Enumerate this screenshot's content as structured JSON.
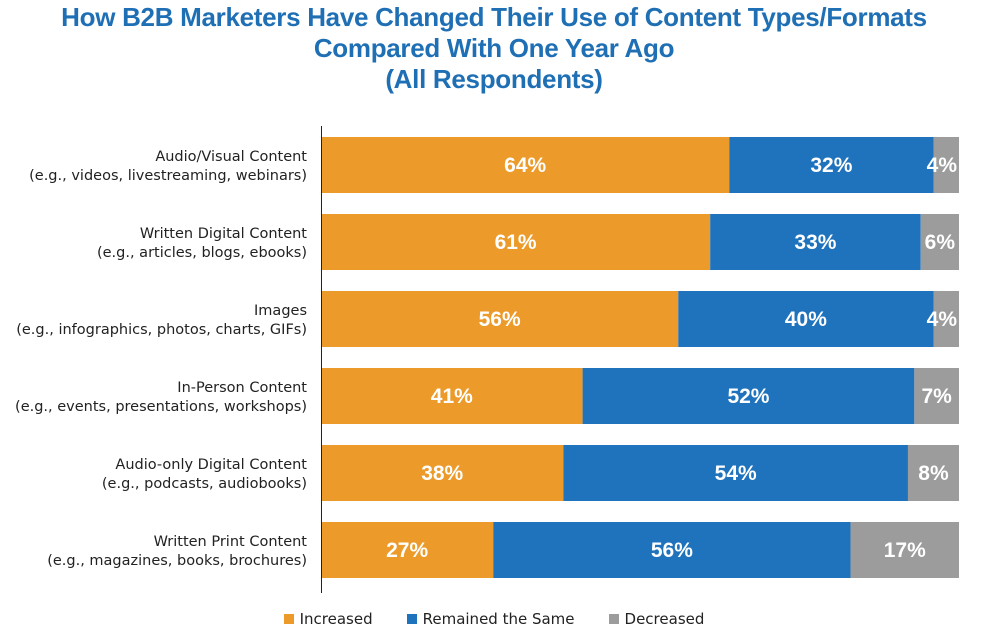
{
  "chart_data": {
    "type": "bar",
    "orientation": "horizontal",
    "stacked": true,
    "title": [
      "How B2B Marketers Have Changed Their Use of Content Types/Formats",
      "Compared With One Year Ago",
      "(All Respondents)"
    ],
    "categories": [
      [
        "Audio/Visual Content",
        "(e.g., videos, livestreaming, webinars)"
      ],
      [
        "Written Digital Content",
        "(e.g., articles, blogs, ebooks)"
      ],
      [
        "Images",
        "(e.g., infographics, photos, charts, GIFs)"
      ],
      [
        "In-Person Content",
        "(e.g., events, presentations, workshops)"
      ],
      [
        "Audio-only Digital Content",
        "(e.g., podcasts, audiobooks)"
      ],
      [
        "Written Print Content",
        "(e.g., magazines, books, brochures)"
      ]
    ],
    "series": [
      {
        "name": "Increased",
        "color": "#ec9b2a",
        "values": [
          64,
          61,
          56,
          41,
          38,
          27
        ]
      },
      {
        "name": "Remained the Same",
        "color": "#1f73bd",
        "values": [
          32,
          33,
          40,
          52,
          54,
          56
        ]
      },
      {
        "name": "Decreased",
        "color": "#9c9c9c",
        "values": [
          4,
          6,
          4,
          7,
          8,
          17
        ]
      }
    ],
    "value_suffix": "%",
    "xlim": [
      0,
      100
    ],
    "grid": false,
    "legend_position": "bottom"
  }
}
